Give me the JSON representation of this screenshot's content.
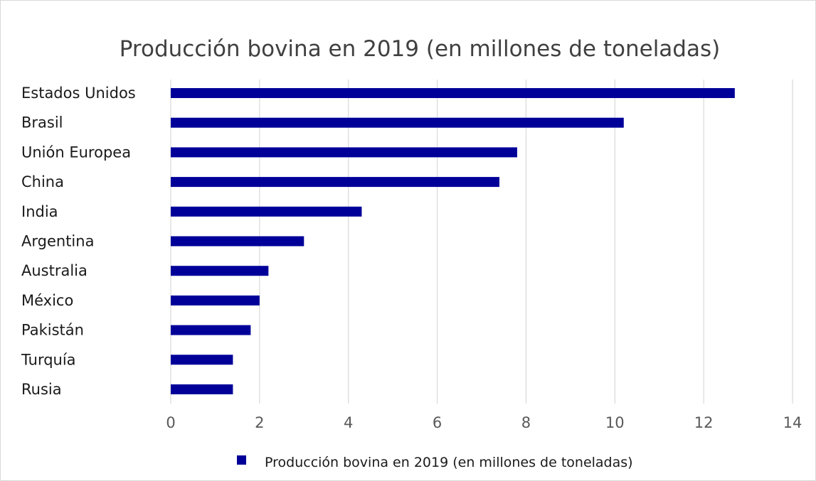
{
  "chart_data": {
    "type": "bar",
    "orientation": "horizontal",
    "title": "Producción bovina en 2019 (en millones de toneladas)",
    "categories": [
      "Estados Unidos",
      "Brasil",
      "Unión Europea",
      "China",
      "India",
      "Argentina",
      "Australia",
      "México",
      "Pakistán",
      "Turquía",
      "Rusia"
    ],
    "series": [
      {
        "name": "Producción bovina en 2019 (en millones de toneladas)",
        "values": [
          12.7,
          10.2,
          7.8,
          7.4,
          4.3,
          3.0,
          2.2,
          2.0,
          1.8,
          1.4,
          1.4
        ],
        "color": "#000099"
      }
    ],
    "xlim": [
      0,
      14
    ],
    "xticks": [
      0,
      2,
      4,
      6,
      8,
      10,
      12,
      14
    ],
    "xlabel": "",
    "ylabel": "",
    "grid": "vertical",
    "legend": "bottom"
  }
}
